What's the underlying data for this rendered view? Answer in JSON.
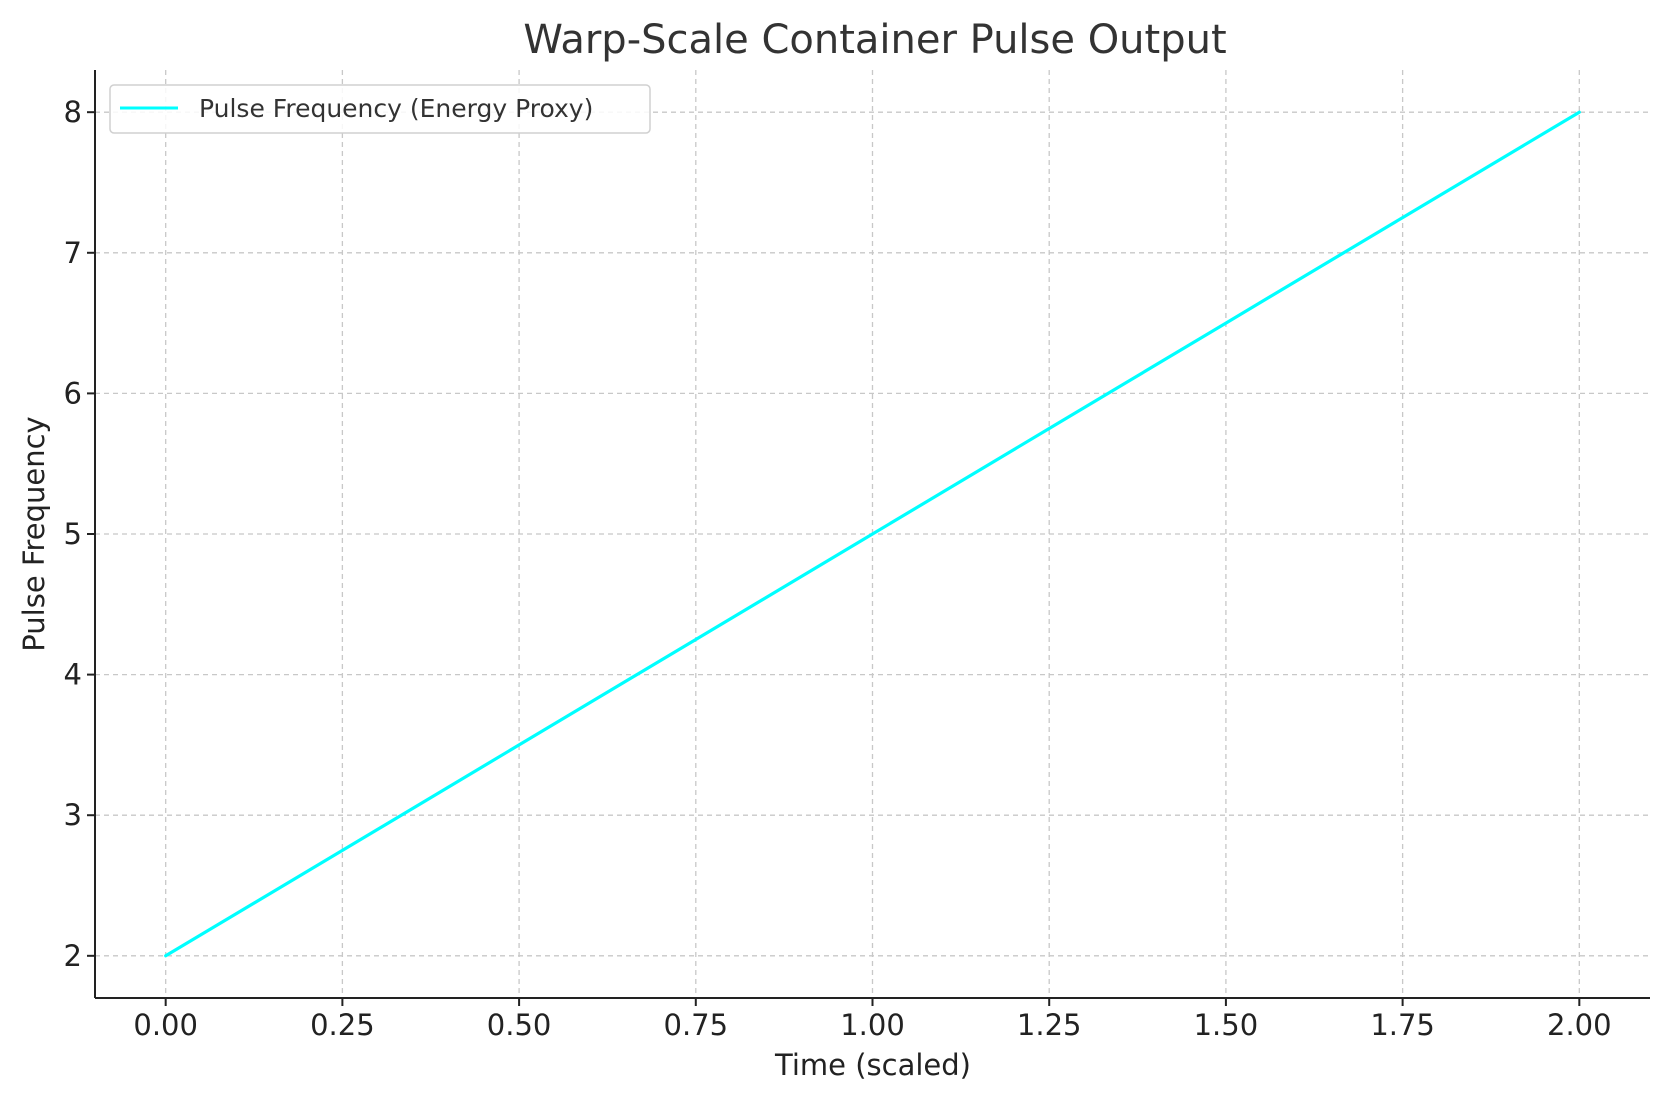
{
  "chart_data": {
    "type": "line",
    "title": "Warp-Scale Container Pulse Output",
    "xlabel": "Time (scaled)",
    "ylabel": "Pulse Frequency",
    "xlim": [
      -0.1,
      2.1
    ],
    "ylim": [
      1.7,
      8.3
    ],
    "xticks": [
      0.0,
      0.25,
      0.5,
      0.75,
      1.0,
      1.25,
      1.5,
      1.75,
      2.0
    ],
    "xtick_labels": [
      "0.00",
      "0.25",
      "0.50",
      "0.75",
      "1.00",
      "1.25",
      "1.50",
      "1.75",
      "2.00"
    ],
    "yticks": [
      2,
      3,
      4,
      5,
      6,
      7,
      8
    ],
    "ytick_labels": [
      "2",
      "3",
      "4",
      "5",
      "6",
      "7",
      "8"
    ],
    "grid": true,
    "legend_position": "top-left",
    "series": [
      {
        "name": "Pulse Frequency (Energy Proxy)",
        "color": "#00ffff",
        "x": [
          0.0,
          0.25,
          0.5,
          0.75,
          1.0,
          1.25,
          1.5,
          1.75,
          2.0
        ],
        "y": [
          2.0,
          2.75,
          3.5,
          4.25,
          5.0,
          5.75,
          6.5,
          7.25,
          8.0
        ]
      }
    ]
  }
}
